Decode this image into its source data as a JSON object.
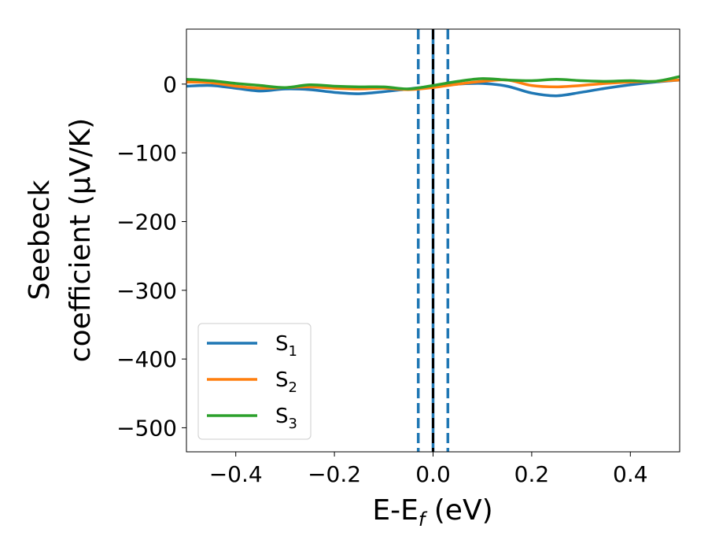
{
  "chart_data": {
    "type": "line",
    "xlabel_main": "E-E",
    "xlabel_sub": "f",
    "xlabel_unit": " (eV)",
    "ylabel_line1": "Seebeck",
    "ylabel_line2": "coefficient  (μV/K)",
    "xlim": [
      -0.5,
      0.5
    ],
    "ylim": [
      -535,
      80
    ],
    "xticks": [
      -0.4,
      -0.2,
      0.0,
      0.2,
      0.4
    ],
    "xtick_labels": [
      "−0.4",
      "−0.2",
      "0.0",
      "0.2",
      "0.4"
    ],
    "yticks": [
      0,
      -100,
      -200,
      -300,
      -400,
      -500
    ],
    "ytick_labels": [
      "0",
      "−100",
      "−200",
      "−300",
      "−400",
      "−500"
    ],
    "grid": false,
    "legend_position": "lower-left",
    "vlines": [
      {
        "x": -0.03,
        "style": "dashed",
        "color": "#1f77b4"
      },
      {
        "x": 0.03,
        "style": "dashed",
        "color": "#1f77b4"
      },
      {
        "x": 0.0,
        "style": "solid",
        "color": "#1f77b4"
      },
      {
        "x": 0.0,
        "style": "dashed",
        "color": "#000000"
      }
    ],
    "series": [
      {
        "name": "S",
        "sub": "1",
        "color": "#1f77b4",
        "x": [
          -0.5,
          -0.45,
          -0.4,
          -0.35,
          -0.3,
          -0.25,
          -0.2,
          -0.15,
          -0.1,
          -0.05,
          0.0,
          0.05,
          0.1,
          0.15,
          0.2,
          0.25,
          0.3,
          0.35,
          0.4,
          0.45,
          0.5
        ],
        "y": [
          -3,
          -2,
          -6,
          -10,
          -7,
          -8,
          -12,
          -14,
          -11,
          -7,
          -3,
          0,
          1,
          -3,
          -13,
          -17,
          -12,
          -6,
          -1,
          3,
          6
        ]
      },
      {
        "name": "S",
        "sub": "2",
        "color": "#ff7f0e",
        "x": [
          -0.5,
          -0.45,
          -0.4,
          -0.35,
          -0.3,
          -0.25,
          -0.2,
          -0.15,
          -0.1,
          -0.05,
          0.0,
          0.05,
          0.1,
          0.15,
          0.2,
          0.25,
          0.3,
          0.35,
          0.4,
          0.45,
          0.5
        ],
        "y": [
          3,
          2,
          -3,
          -6,
          -5,
          -4,
          -6,
          -7,
          -6,
          -8,
          -5,
          0,
          4,
          6,
          -2,
          -4,
          -2,
          1,
          3,
          4,
          6
        ]
      },
      {
        "name": "S",
        "sub": "3",
        "color": "#2ca02c",
        "x": [
          -0.5,
          -0.45,
          -0.4,
          -0.35,
          -0.3,
          -0.25,
          -0.2,
          -0.15,
          -0.1,
          -0.05,
          0.0,
          0.05,
          0.1,
          0.15,
          0.2,
          0.25,
          0.3,
          0.35,
          0.4,
          0.45,
          0.5
        ],
        "y": [
          7,
          5,
          1,
          -2,
          -5,
          -1,
          -3,
          -4,
          -4,
          -7,
          -2,
          4,
          8,
          6,
          5,
          7,
          5,
          4,
          5,
          4,
          11
        ]
      }
    ]
  }
}
